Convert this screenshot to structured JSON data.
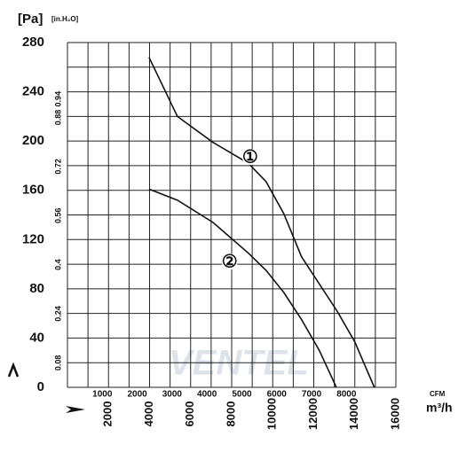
{
  "chart_data": {
    "type": "line",
    "y_unit": "[Pa]",
    "y2_unit": "[in.H₂O]",
    "x_unit": "m³/h",
    "x2_unit": "CFM",
    "watermark": "VENTEL",
    "xlim": [
      0,
      16000
    ],
    "xticks": [
      2000,
      4000,
      6000,
      8000,
      10000,
      12000,
      14000,
      16000
    ],
    "minor_xticks": [
      1000,
      3000,
      5000,
      7000,
      9000,
      11000,
      13000,
      15000
    ],
    "x2lim": [
      0,
      9417
    ],
    "x2ticks": [
      1000,
      2000,
      3000,
      4000,
      5000,
      6000,
      7000,
      8000
    ],
    "ylim": [
      0,
      280
    ],
    "yticks": [
      0,
      40,
      80,
      120,
      160,
      200,
      240,
      280
    ],
    "minor_yticks": [
      20,
      60,
      100,
      140,
      180,
      220,
      260
    ],
    "y2lim": [
      0,
      1.124
    ],
    "y2ticks": [
      0.08,
      0.24,
      0.4,
      0.56,
      0.72,
      0.88,
      0.94
    ],
    "grid": true,
    "series": [
      {
        "name": "①",
        "color": "#111111",
        "label_x": 8900,
        "label_y": 187,
        "x": [
          3974,
          5356,
          7084,
          8812,
          9676,
          10540,
          11404,
          12268,
          13132,
          13996,
          14950
        ],
        "values": [
          268,
          220,
          199,
          182,
          167,
          141,
          106,
          84,
          62,
          37,
          0
        ]
      },
      {
        "name": "②",
        "color": "#111111",
        "label_x": 7900,
        "label_y": 102,
        "x": [
          3974,
          5356,
          7084,
          8812,
          9676,
          10540,
          11404,
          12268,
          13100
        ],
        "values": [
          161,
          152,
          134,
          109,
          95,
          77,
          55,
          30,
          0
        ]
      }
    ]
  }
}
